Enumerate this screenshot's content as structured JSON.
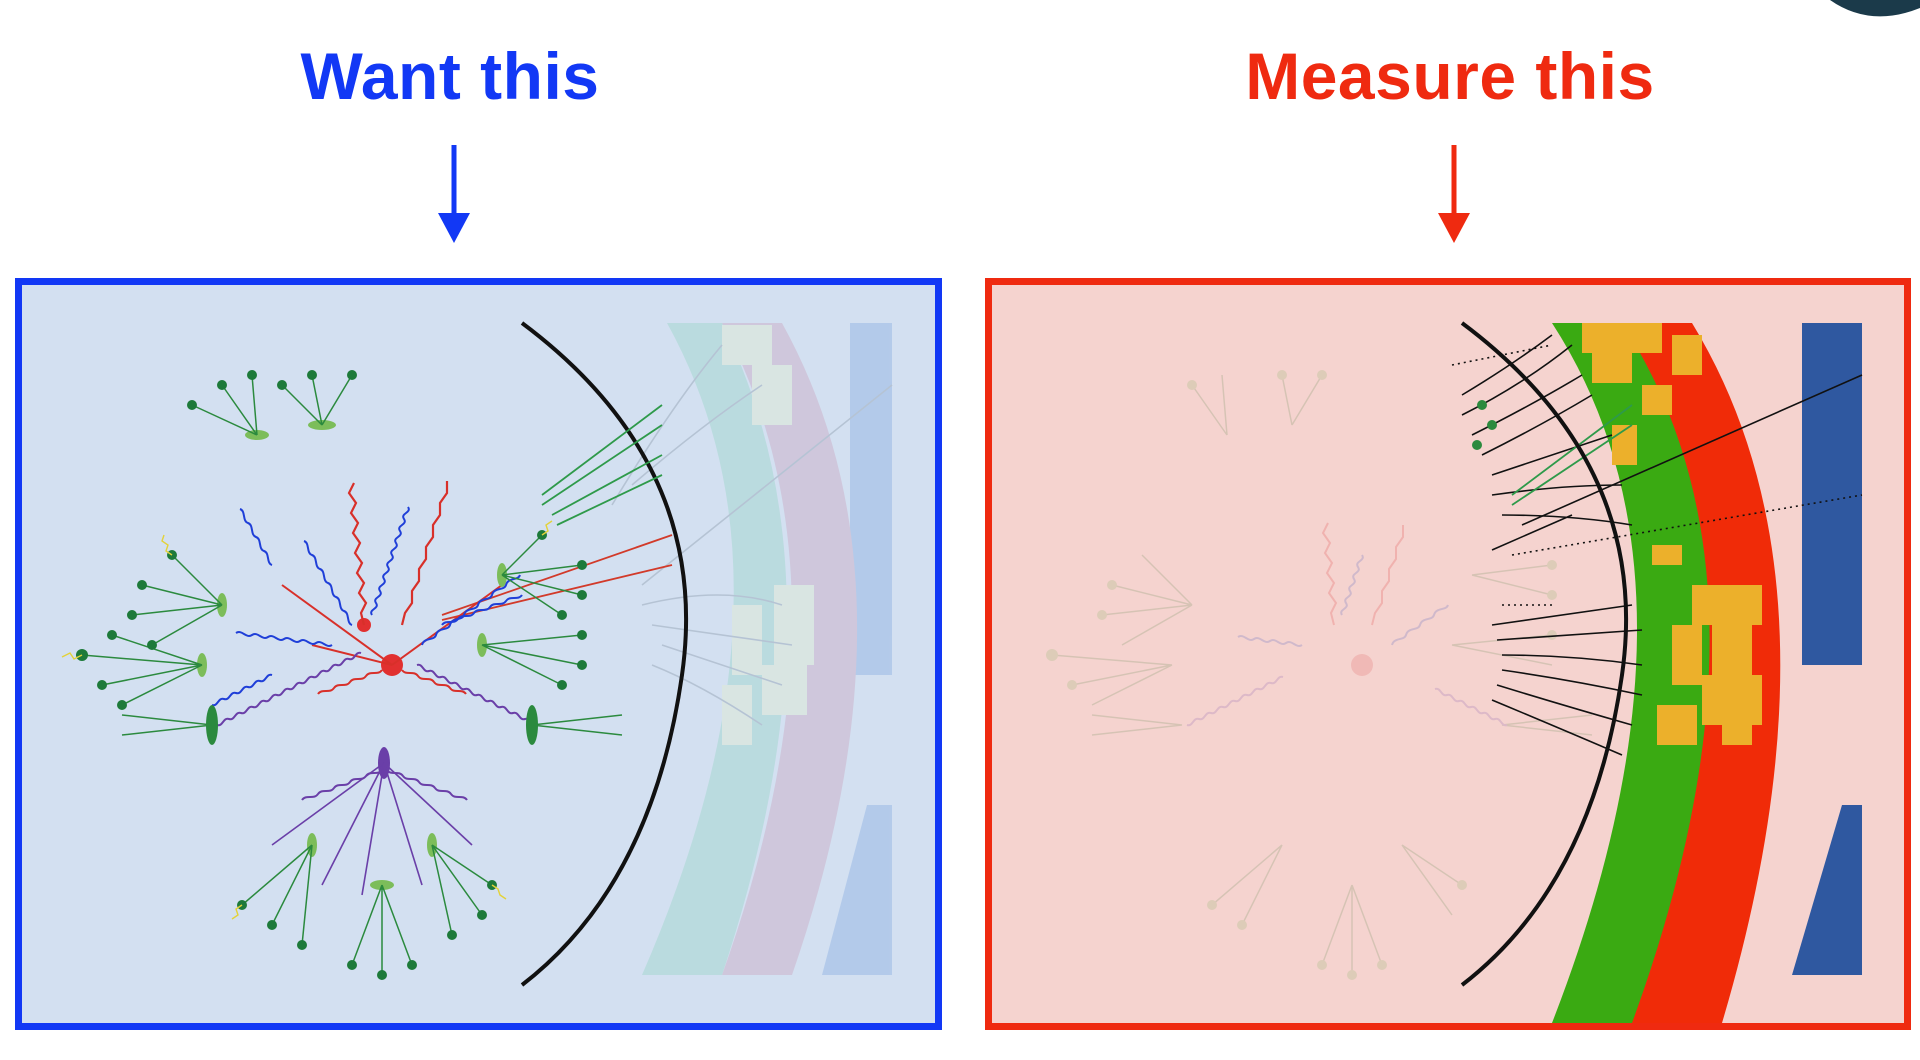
{
  "left": {
    "heading": "Want this",
    "accent_color": "#1238f5",
    "panel_background": "#d3e0f1",
    "content": "simulated parton shower and hadronization event with detector layers (emphasized)"
  },
  "right": {
    "heading": "Measure this",
    "accent_color": "#ef2a10",
    "panel_background": "#f5d3cf",
    "content": "detector measurements: tracks, calorimeter energy deposits (emphasized), with faded event underneath"
  },
  "colors": {
    "tracker_green": "#3aaa12",
    "calorimeter_red": "#f02b08",
    "energy_orange": "#ecb02b",
    "muon_blue": "#2f58a0"
  }
}
